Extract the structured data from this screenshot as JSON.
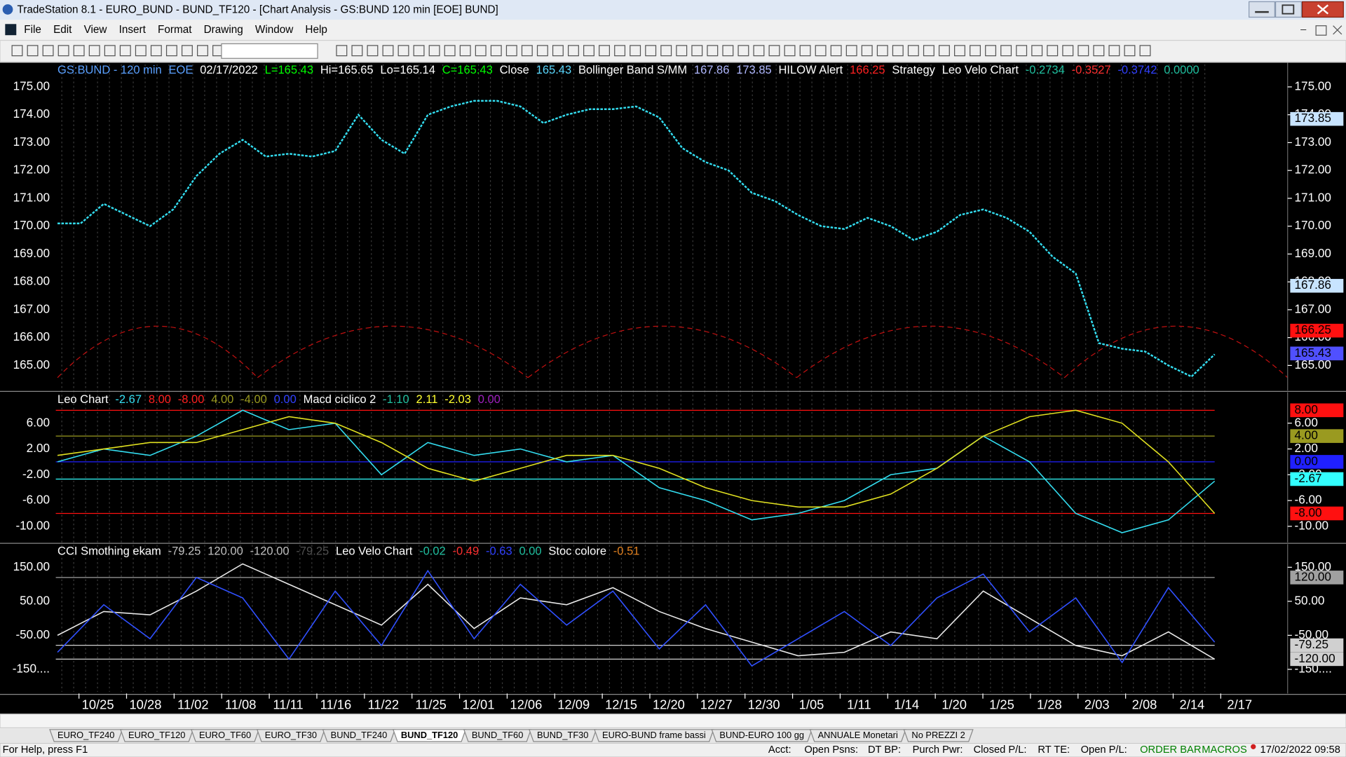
{
  "window": {
    "title": "TradeStation 8.1 - EURO_BUND - BUND_TF120 - [Chart Analysis - GS:BUND  120 min  [EOE] BUND]"
  },
  "menu": [
    "File",
    "Edit",
    "View",
    "Insert",
    "Format",
    "Drawing",
    "Window",
    "Help"
  ],
  "chart": {
    "panels": [
      {
        "header": [
          {
            "text": "GS:BUND - 120 min",
            "color": "#5aa0ff"
          },
          {
            "text": "EOE",
            "color": "#5aa0ff"
          },
          {
            "text": "02/17/2022",
            "color": "#ffffff"
          },
          {
            "text": "L=165.43",
            "color": "#00ff00"
          },
          {
            "text": "Hi=165.65",
            "color": "#ffffff"
          },
          {
            "text": "Lo=165.14",
            "color": "#ffffff"
          },
          {
            "text": "C=165.43",
            "color": "#00ff00"
          },
          {
            "text": "Close",
            "color": "#ffffff"
          },
          {
            "text": "165.43",
            "color": "#5ad8ff"
          },
          {
            "text": "Bollinger Band S/MM",
            "color": "#ffffff"
          },
          {
            "text": "167.86",
            "color": "#b0b8ff"
          },
          {
            "text": "173.85",
            "color": "#b0b8ff"
          },
          {
            "text": "HILOW Alert",
            "color": "#ffffff"
          },
          {
            "text": "166.25",
            "color": "#ff2020"
          },
          {
            "text": "Strategy",
            "color": "#ffffff"
          },
          {
            "text": "Leo Velo Chart",
            "color": "#ffffff"
          },
          {
            "text": "-0.2734",
            "color": "#20c0a0"
          },
          {
            "text": "-0.3527",
            "color": "#ff3030"
          },
          {
            "text": "-0.3742",
            "color": "#3040ff"
          },
          {
            "text": "0.0000",
            "color": "#20c0a0"
          }
        ],
        "ylim": [
          164.1,
          175.87
        ],
        "yticks": [
          {
            "value": 175,
            "label": "175.00"
          },
          {
            "value": 174,
            "label": "174.00"
          },
          {
            "value": 173,
            "label": "173.00"
          },
          {
            "value": 172,
            "label": "172.00"
          },
          {
            "value": 171,
            "label": "171.00"
          },
          {
            "value": 170,
            "label": "170.00"
          },
          {
            "value": 169,
            "label": "169.00"
          },
          {
            "value": 168,
            "label": "168.00"
          },
          {
            "value": 167,
            "label": "167.00"
          },
          {
            "value": 166,
            "label": "166.00"
          },
          {
            "value": 165,
            "label": "165.00"
          }
        ],
        "flags": [
          {
            "value": 173.85,
            "color": "#c8e4ff"
          },
          {
            "value": 167.86,
            "color": "#c8e4ff"
          },
          {
            "value": 166.25,
            "color": "#ff1010"
          },
          {
            "value": 165.43,
            "color": "#5050ff"
          }
        ],
        "series": [
          {
            "color": "#33ddf0",
            "values": [
              170.1,
              170.1,
              170.8,
              170.4,
              170.0,
              170.6,
              171.8,
              172.6,
              173.1,
              172.5,
              172.6,
              172.5,
              172.7,
              174.0,
              173.1,
              172.6,
              174.0,
              174.3,
              174.5,
              174.5,
              174.3,
              173.7,
              174.0,
              174.2,
              174.2,
              174.3,
              173.9,
              172.8,
              172.3,
              172.0,
              171.2,
              170.9,
              170.4,
              170.0,
              169.9,
              170.3,
              170.0,
              169.5,
              169.8,
              170.4,
              170.6,
              170.3,
              169.8,
              168.9,
              168.3,
              165.8,
              165.6,
              165.5,
              165.0,
              164.6,
              165.4
            ]
          }
        ]
      },
      {
        "header": [
          {
            "text": "Leo Chart",
            "color": "#ffffff"
          },
          {
            "text": "-2.67",
            "color": "#33ddf0"
          },
          {
            "text": "8.00",
            "color": "#ff2020"
          },
          {
            "text": "-8.00",
            "color": "#ff2020"
          },
          {
            "text": "4.00",
            "color": "#9a9a20"
          },
          {
            "text": "-4.00",
            "color": "#9a9a20"
          },
          {
            "text": "0.00",
            "color": "#3040ff"
          },
          {
            "text": "Macd ciclico 2",
            "color": "#ffffff"
          },
          {
            "text": "-1.10",
            "color": "#20c0a0"
          },
          {
            "text": "2.11",
            "color": "#ffff30"
          },
          {
            "text": "-2.03",
            "color": "#ffff30"
          },
          {
            "text": "0.00",
            "color": "#a020c0"
          }
        ],
        "ylim": [
          -12.5,
          10.8
        ],
        "yticks": [
          {
            "value": 6,
            "label": "6.00"
          },
          {
            "value": 2,
            "label": "2.00"
          },
          {
            "value": -2,
            "label": "-2.00"
          },
          {
            "value": -6,
            "label": "-6.00"
          },
          {
            "value": -10,
            "label": "-10.00"
          }
        ],
        "flags": [
          {
            "value": 8,
            "label": "8.00",
            "color": "#ff1010"
          },
          {
            "value": 4,
            "label": "4.00",
            "color": "#9a9a20"
          },
          {
            "value": 0,
            "label": "0.00",
            "color": "#2020ff"
          },
          {
            "value": -2.67,
            "color": "#33ffff"
          },
          {
            "value": -8,
            "label": "-8.00",
            "color": "#ff1010"
          }
        ],
        "series": [
          {
            "color": "#33ddf0",
            "values": [
              0,
              2,
              1,
              4,
              8,
              5,
              6,
              -2,
              3,
              1,
              2,
              0,
              1,
              -4,
              -6,
              -9,
              -8,
              -6,
              -2,
              -1,
              4,
              0,
              -8,
              -11,
              -9,
              -3
            ]
          },
          {
            "color": "#e0e020",
            "values": [
              1,
              2,
              3,
              3,
              5,
              7,
              6,
              3,
              -1,
              -3,
              -1,
              1,
              1,
              -1,
              -4,
              -6,
              -7,
              -7,
              -5,
              -1,
              4,
              7,
              8,
              6,
              0,
              -8
            ]
          }
        ]
      },
      {
        "header": [
          {
            "text": "CCI Smothing ekam",
            "color": "#ffffff"
          },
          {
            "text": "-79.25",
            "color": "#c0c0c0"
          },
          {
            "text": "120.00",
            "color": "#c0c0c0"
          },
          {
            "text": "-120.00",
            "color": "#c0c0c0"
          },
          {
            "text": "-79.25",
            "color": "#505050"
          },
          {
            "text": "Leo Velo Chart",
            "color": "#ffffff"
          },
          {
            "text": "-0.02",
            "color": "#20c0a0"
          },
          {
            "text": "-0.49",
            "color": "#ff3030"
          },
          {
            "text": "-0.63",
            "color": "#3040ff"
          },
          {
            "text": "0.00",
            "color": "#20c0a0"
          },
          {
            "text": "Stoc colore",
            "color": "#ffffff"
          },
          {
            "text": "-0.51",
            "color": "#e08020"
          }
        ],
        "ylim": [
          -221,
          218
        ],
        "yticks": [
          {
            "value": 150,
            "label": "150.00"
          },
          {
            "value": 50,
            "label": "50.00"
          },
          {
            "value": -50,
            "label": "-50.00"
          },
          {
            "value": -150,
            "label": "-150...."
          }
        ],
        "flags": [
          {
            "value": 120,
            "label": "120.00",
            "color": "#a0a0a0"
          },
          {
            "value": -79.25,
            "color": "#d0d0d0"
          },
          {
            "value": -120,
            "label": "-120.00",
            "color": "#d0d0d0"
          }
        ],
        "series": [
          {
            "color": "#e8e8e8",
            "values": [
              -50,
              20,
              10,
              80,
              160,
              100,
              40,
              -20,
              100,
              -30,
              60,
              40,
              90,
              20,
              -30,
              -70,
              -110,
              -100,
              -40,
              -60,
              80,
              0,
              -80,
              -110,
              -40,
              -120
            ]
          },
          {
            "color": "#3050ff",
            "values": [
              -100,
              40,
              -60,
              120,
              60,
              -120,
              80,
              -80,
              140,
              -60,
              100,
              -20,
              80,
              -90,
              40,
              -140,
              -60,
              20,
              -80,
              60,
              130,
              -40,
              60,
              -130,
              90,
              -70
            ]
          }
        ]
      }
    ],
    "x_axis": [
      "10/25",
      "10/28",
      "11/02",
      "11/08",
      "11/11",
      "11/16",
      "11/22",
      "11/25",
      "12/01",
      "12/06",
      "12/09",
      "12/15",
      "12/20",
      "12/27",
      "12/30",
      "1/05",
      "1/11",
      "1/14",
      "1/20",
      "1/25",
      "1/28",
      "2/03",
      "2/08",
      "2/14",
      "2/17"
    ]
  },
  "tabs": [
    "EURO_TF240",
    "EURO_TF120",
    "EURO_TF60",
    "EURO_TF30",
    "BUND_TF240",
    "BUND_TF120",
    "BUND_TF60",
    "BUND_TF30",
    "EURO-BUND frame bassi",
    "BUND-EURO 100 gg",
    "ANNUALE Monetari",
    "No PREZZI 2"
  ],
  "status": {
    "help": "For Help, press F1",
    "fields": [
      "Acct:",
      "Open Psns:",
      "DT BP:",
      "Purch Pwr:",
      "Closed P/L:",
      "RT TE:",
      "Open P/L:"
    ],
    "order_bar": "ORDER BAR",
    "macros": "MACROS",
    "clock": "17/02/2022 09:58"
  }
}
